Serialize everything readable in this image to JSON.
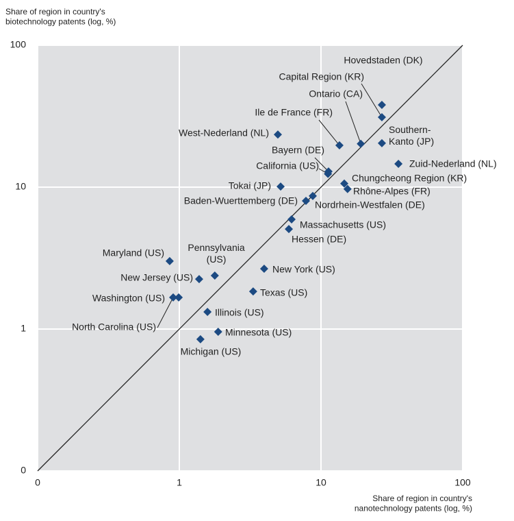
{
  "chart_data": {
    "type": "scatter",
    "ylabel": "Share of region in country's\nbiotechnology patents (log, %)",
    "xlabel": "Share of region in country's\nnanotechnology patents (log, %)",
    "xscale": "log",
    "yscale": "log",
    "grid": true,
    "color": "#1c4a82",
    "xlim": [
      0.1,
      100
    ],
    "ylim": [
      0.1,
      100
    ],
    "xticks": [
      {
        "value": 0.1,
        "label": "0"
      },
      1,
      10,
      100
    ],
    "yticks": [
      {
        "value": 0.1,
        "label": "0"
      },
      1,
      10,
      100
    ],
    "point_labels": [
      "Hovedstaden (DK)",
      "Capital Region (KR)",
      "Ontario (CA)",
      "Ile de France (FR)",
      "West-Nederland (NL)",
      "Southern-\nKanto (JP)",
      "Zuid-Nederland (NL)",
      "Bayern (DE)",
      "California (US)",
      "Tokai (JP)",
      "Chungcheong Region (KR)",
      "Rhône-Alpes (FR)",
      "Baden-Wuerttemberg (DE)",
      "Nordrhein-Westfalen (DE)",
      "Massachusetts (US)",
      "Hessen (DE)",
      "Maryland (US)",
      "Pennsylvania\n(US)",
      "New Jersey (US)",
      "New York (US)",
      "Texas (US)",
      "Washington (US)",
      "North Carolina (US)",
      "Illinois (US)",
      "Minnesota (US)",
      "Michigan (US)"
    ],
    "x": [
      26.9,
      26.9,
      19.1,
      13.5,
      4.96,
      26.9,
      35.2,
      11.3,
      11.2,
      5.19,
      14.6,
      15.4,
      7.83,
      8.75,
      6.2,
      5.93,
      0.855,
      1.78,
      1.38,
      3.97,
      3.32,
      0.99,
      0.905,
      1.58,
      1.88,
      1.41
    ],
    "series": [
      {
        "values": [
          38.0,
          31.1,
          20.2,
          19.7,
          23.5,
          20.4,
          14.6,
          12.9,
          12.4,
          10.1,
          10.6,
          9.7,
          8.0,
          8.66,
          5.93,
          5.07,
          3.01,
          2.38,
          2.25,
          2.66,
          1.84,
          1.67,
          1.67,
          1.32,
          0.957,
          0.847
        ]
      }
    ]
  }
}
